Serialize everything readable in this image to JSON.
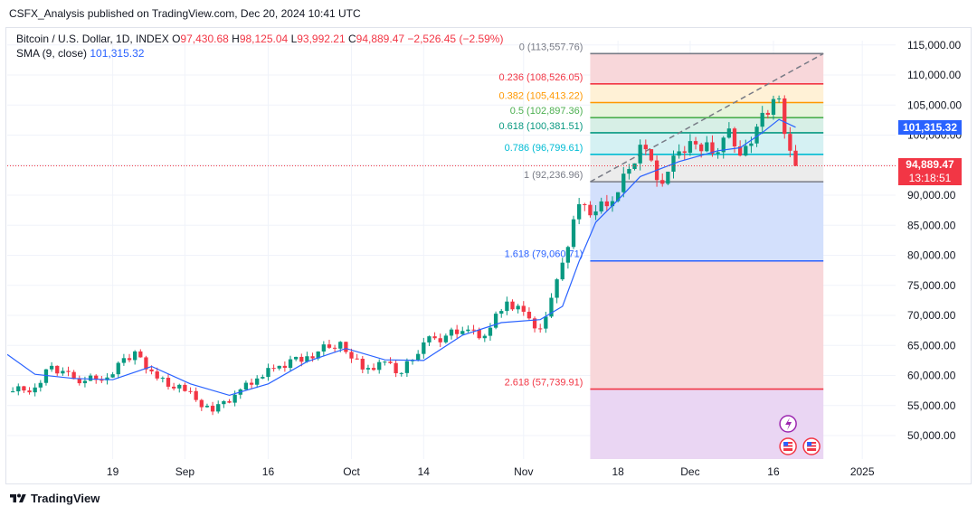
{
  "header": {
    "published": "CSFX_Analysis published on TradingView.com, Dec 20, 2024 10:41 UTC"
  },
  "legend": {
    "symbol": "Bitcoin / U.S. Dollar, 1D, INDEX",
    "o_label": "O",
    "o": "97,430.68",
    "h_label": "H",
    "h": "98,125.04",
    "l_label": "L",
    "l": "93,992.21",
    "c_label": "C",
    "c": "94,889.47",
    "change": "−2,526.45 (−2.59%)",
    "sma_label": "SMA (9, close)",
    "sma_value": "101,315.32"
  },
  "price_tags": {
    "sma": "101,315.32",
    "last": "94,889.47",
    "countdown": "13:18:51"
  },
  "footer": {
    "brand": "TradingView"
  },
  "colors": {
    "up": "#089981",
    "down": "#f23645",
    "sma": "#2962ff",
    "fib_0": "#787b86",
    "fib_236": "#f23645",
    "fib_382": "#ff9800",
    "fib_05": "#4caf50",
    "fib_618": "#089981",
    "fib_786": "#00bcd4",
    "fib_1": "#787b86",
    "fib_1618": "#2962ff",
    "fib_2618": "#f23645"
  },
  "chart_data": {
    "type": "candlestick",
    "y_axis": {
      "range": [
        45000,
        117000
      ],
      "ticks": [
        "115,000.00",
        "110,000.00",
        "105,000.00",
        "100,000.00",
        "95,000.00",
        "90,000.00",
        "85,000.00",
        "80,000.00",
        "75,000.00",
        "70,000.00",
        "65,000.00",
        "60,000.00",
        "55,000.00",
        "50,000.00"
      ],
      "tick_values": [
        115000,
        110000,
        105000,
        100000,
        95000,
        90000,
        85000,
        80000,
        75000,
        70000,
        65000,
        60000,
        55000,
        50000
      ]
    },
    "x_axis": {
      "start_date": "2024-07-31",
      "end_date": "2025-01-07",
      "labels": [
        {
          "text": "19",
          "date": "2024-08-19"
        },
        {
          "text": "Sep",
          "date": "2024-09-01"
        },
        {
          "text": "16",
          "date": "2024-09-16"
        },
        {
          "text": "Oct",
          "date": "2024-10-01"
        },
        {
          "text": "14",
          "date": "2024-10-14"
        },
        {
          "text": "Nov",
          "date": "2024-11-01"
        },
        {
          "text": "18",
          "date": "2024-11-18"
        },
        {
          "text": "Dec",
          "date": "2024-12-01"
        },
        {
          "text": "16",
          "date": "2024-12-16"
        },
        {
          "text": "2025",
          "date": "2025-01-01"
        }
      ]
    },
    "close_series": [
      {
        "date": "2024-07-31",
        "close": 57200
      },
      {
        "date": "2024-08-05",
        "close": 58000
      },
      {
        "date": "2024-08-08",
        "close": 61600
      },
      {
        "date": "2024-08-12",
        "close": 59400
      },
      {
        "date": "2024-08-17",
        "close": 59200
      },
      {
        "date": "2024-08-23",
        "close": 64000
      },
      {
        "date": "2024-08-27",
        "close": 59500
      },
      {
        "date": "2024-09-01",
        "close": 57400
      },
      {
        "date": "2024-09-06",
        "close": 54000
      },
      {
        "date": "2024-09-10",
        "close": 56800
      },
      {
        "date": "2024-09-14",
        "close": 59500
      },
      {
        "date": "2024-09-18",
        "close": 61600
      },
      {
        "date": "2024-09-23",
        "close": 63200
      },
      {
        "date": "2024-09-29",
        "close": 65600
      },
      {
        "date": "2024-10-03",
        "close": 61000
      },
      {
        "date": "2024-10-07",
        "close": 62300
      },
      {
        "date": "2024-10-10",
        "close": 60400
      },
      {
        "date": "2024-10-14",
        "close": 65500
      },
      {
        "date": "2024-10-21",
        "close": 67400
      },
      {
        "date": "2024-10-25",
        "close": 66600
      },
      {
        "date": "2024-10-29",
        "close": 72300
      },
      {
        "date": "2024-11-02",
        "close": 69500
      },
      {
        "date": "2024-11-04",
        "close": 67800
      },
      {
        "date": "2024-11-07",
        "close": 76000
      },
      {
        "date": "2024-11-11",
        "close": 88500
      },
      {
        "date": "2024-11-14",
        "close": 87300
      },
      {
        "date": "2024-11-18",
        "close": 90500
      },
      {
        "date": "2024-11-22",
        "close": 98400
      },
      {
        "date": "2024-11-26",
        "close": 91900
      },
      {
        "date": "2024-11-29",
        "close": 97300
      },
      {
        "date": "2024-12-04",
        "close": 98800
      },
      {
        "date": "2024-12-05",
        "close": 96900
      },
      {
        "date": "2024-12-08",
        "close": 101100
      },
      {
        "date": "2024-12-10",
        "close": 96600
      },
      {
        "date": "2024-12-13",
        "close": 101400
      },
      {
        "date": "2024-12-16",
        "close": 106000
      },
      {
        "date": "2024-12-17",
        "close": 106100
      },
      {
        "date": "2024-12-18",
        "close": 100200
      },
      {
        "date": "2024-12-19",
        "close": 97400
      },
      {
        "date": "2024-12-20",
        "close": 94889
      }
    ],
    "sma": {
      "name": "SMA (9, close)",
      "points": [
        {
          "date": "2024-07-31",
          "value": 63500
        },
        {
          "date": "2024-08-05",
          "value": 60200
        },
        {
          "date": "2024-08-12",
          "value": 59500
        },
        {
          "date": "2024-08-19",
          "value": 59300
        },
        {
          "date": "2024-08-26",
          "value": 61500
        },
        {
          "date": "2024-09-02",
          "value": 58600
        },
        {
          "date": "2024-09-09",
          "value": 56700
        },
        {
          "date": "2024-09-16",
          "value": 58600
        },
        {
          "date": "2024-09-23",
          "value": 62300
        },
        {
          "date": "2024-09-30",
          "value": 64500
        },
        {
          "date": "2024-10-07",
          "value": 62600
        },
        {
          "date": "2024-10-14",
          "value": 62500
        },
        {
          "date": "2024-10-21",
          "value": 66700
        },
        {
          "date": "2024-10-28",
          "value": 68800
        },
        {
          "date": "2024-11-04",
          "value": 69300
        },
        {
          "date": "2024-11-08",
          "value": 71500
        },
        {
          "date": "2024-11-11",
          "value": 79000
        },
        {
          "date": "2024-11-14",
          "value": 85500
        },
        {
          "date": "2024-11-18",
          "value": 89200
        },
        {
          "date": "2024-11-22",
          "value": 93100
        },
        {
          "date": "2024-11-29",
          "value": 95600
        },
        {
          "date": "2024-12-06",
          "value": 97400
        },
        {
          "date": "2024-12-10",
          "value": 97900
        },
        {
          "date": "2024-12-14",
          "value": 100400
        },
        {
          "date": "2024-12-17",
          "value": 102600
        },
        {
          "date": "2024-12-20",
          "value": 101315
        }
      ]
    },
    "fibonacci": {
      "start_date": "2024-11-13",
      "end_date": "2024-12-25",
      "levels": [
        {
          "ratio": 0,
          "label": "0 (113,557.76)",
          "price": 113557.76,
          "color_key": "fib_0"
        },
        {
          "ratio": 0.236,
          "label": "0.236 (108,526.05)",
          "price": 108526.05,
          "color_key": "fib_236"
        },
        {
          "ratio": 0.382,
          "label": "0.382 (105,413.22)",
          "price": 105413.22,
          "color_key": "fib_382"
        },
        {
          "ratio": 0.5,
          "label": "0.5 (102,897.36)",
          "price": 102897.36,
          "color_key": "fib_05"
        },
        {
          "ratio": 0.618,
          "label": "0.618 (100,381.51)",
          "price": 100381.51,
          "color_key": "fib_618"
        },
        {
          "ratio": 0.786,
          "label": "0.786 (96,799.61)",
          "price": 96799.61,
          "color_key": "fib_786"
        },
        {
          "ratio": 1,
          "label": "1 (92,236.96)",
          "price": 92236.96,
          "color_key": "fib_1"
        },
        {
          "ratio": 1.618,
          "label": "1.618 (79,060.71)",
          "price": 79060.71,
          "color_key": "fib_1618"
        },
        {
          "ratio": 2.618,
          "label": "2.618 (57,739.91)",
          "price": 57739.91,
          "color_key": "fib_2618"
        }
      ],
      "bands": [
        {
          "from": 113557.76,
          "to": 108526.05,
          "color": "#f8d7da"
        },
        {
          "from": 108526.05,
          "to": 105413.22,
          "color": "#fff1d6"
        },
        {
          "from": 105413.22,
          "to": 102897.36,
          "color": "#e7f4dc"
        },
        {
          "from": 102897.36,
          "to": 100381.51,
          "color": "#d7efe6"
        },
        {
          "from": 100381.51,
          "to": 96799.61,
          "color": "#d5f1f3"
        },
        {
          "from": 96799.61,
          "to": 92236.96,
          "color": "#ececec"
        },
        {
          "from": 92236.96,
          "to": 79060.71,
          "color": "#d3e0fc"
        },
        {
          "from": 79060.71,
          "to": 57739.91,
          "color": "#f8d7da"
        },
        {
          "from": 57739.91,
          "to": 45000,
          "color": "#ead6f3"
        }
      ],
      "trend_line": [
        {
          "date": "2024-11-13",
          "price": 92236.96
        },
        {
          "date": "2024-12-25",
          "price": 113557.76
        }
      ]
    },
    "last_price": 94889.47,
    "grid": true
  }
}
